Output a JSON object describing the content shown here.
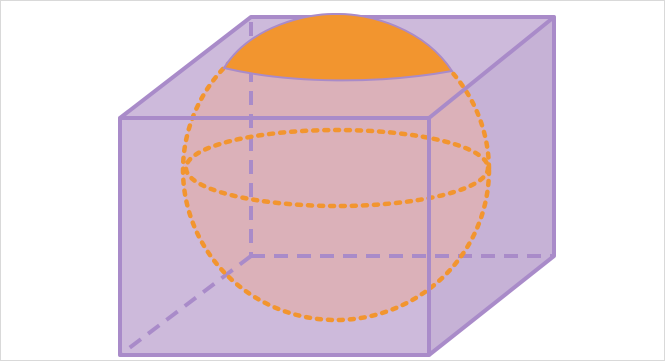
{
  "diagram": {
    "subject": "sphere-in-cube",
    "colors": {
      "cube_fill": "#cdbadb",
      "cube_edge": "#a98bc9",
      "sphere_tint": "#dbb1b9",
      "sphere_outline": "#f2952f",
      "sphere_cap": "#f2952f",
      "frame_border": "#d9d9d9"
    }
  }
}
